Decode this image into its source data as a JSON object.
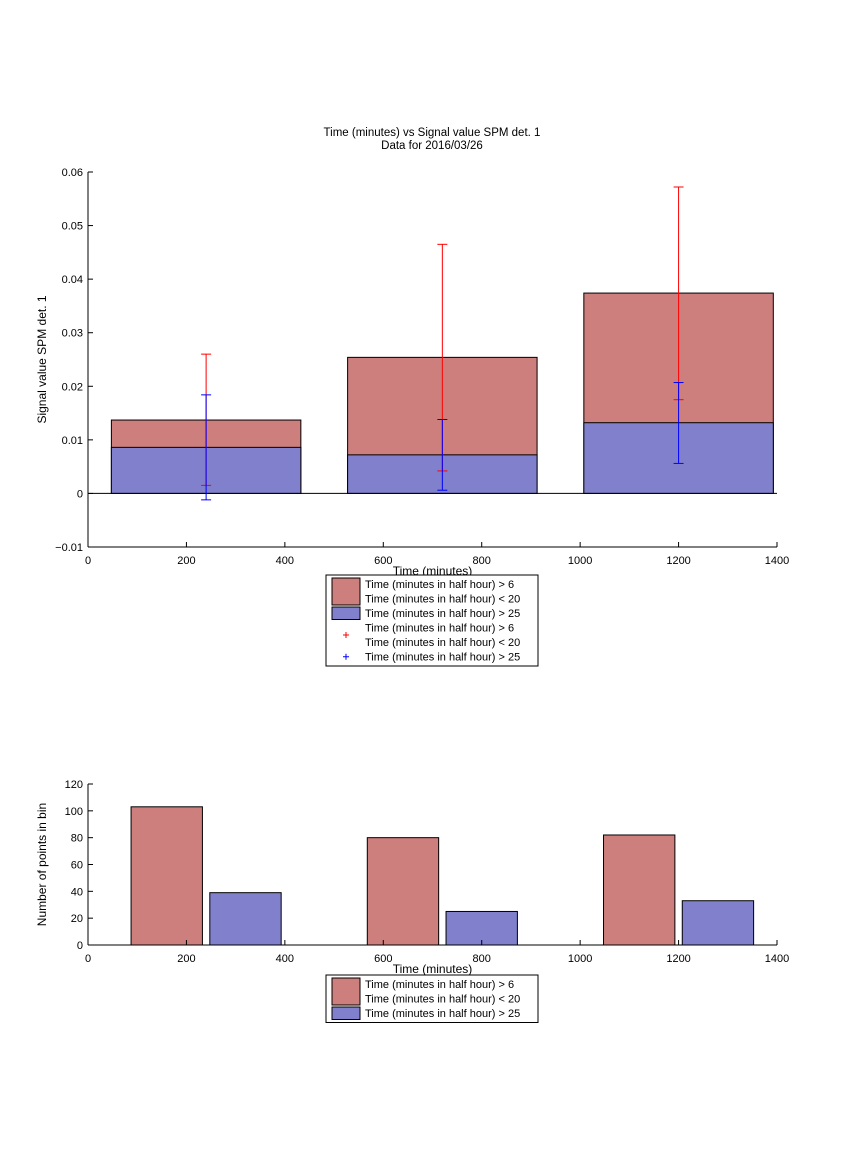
{
  "figure": {
    "title": "Time (minutes) vs Signal value SPM det. 1",
    "subtitle": "Data for 2016/03/26"
  },
  "colors": {
    "bar_red": "#cc7f7d",
    "bar_blue": "#8080cc",
    "err_red": "#ff0000",
    "err_blue": "#0000ff"
  },
  "chart_data": [
    {
      "type": "bar",
      "stacked": "overlay",
      "xlabel": "Time (minutes)",
      "ylabel": "Signal value SPM det. 1",
      "xlim": [
        0,
        1400
      ],
      "ylim": [
        -0.01,
        0.06
      ],
      "xticks": [
        0,
        200,
        400,
        600,
        800,
        1000,
        1200,
        1400
      ],
      "yticks": [
        -0.01,
        0,
        0.01,
        0.02,
        0.03,
        0.04,
        0.05,
        0.06
      ],
      "ytick_labels": [
        "−0.01",
        "0",
        "0.01",
        "0.02",
        "0.03",
        "0.04",
        "0.05",
        "0.06"
      ],
      "grid": false,
      "bar_centers": [
        240,
        720,
        1200
      ],
      "bar_width": 385,
      "series": [
        {
          "name": "Time (minutes in half hour) > 6\nTime (minutes in half hour) < 20",
          "color_key": "bar_red",
          "values": [
            0.0137,
            0.0254,
            0.0374
          ]
        },
        {
          "name": "Time (minutes in half hour) > 25",
          "color_key": "bar_blue",
          "values": [
            0.0086,
            0.0072,
            0.0132
          ]
        }
      ],
      "errorbars": [
        {
          "name": "Time (minutes in half hour) > 6\nTime (minutes in half hour) < 20",
          "color_key": "err_red",
          "x": [
            240,
            720,
            1200
          ],
          "lower": [
            0.0015,
            0.0042,
            0.0175
          ],
          "upper": [
            0.026,
            0.0465,
            0.0572
          ]
        },
        {
          "name": "Time (minutes in half hour) > 25",
          "color_key": "err_blue",
          "x": [
            240,
            720,
            1200
          ],
          "lower": [
            -0.0012,
            0.0006,
            0.0056
          ],
          "upper": [
            0.0184,
            0.0138,
            0.0207
          ]
        }
      ],
      "legend": {
        "placement": "bottom-center",
        "entries": [
          {
            "kind": "bar",
            "color_key": "bar_red",
            "lines": [
              "Time (minutes in half hour) > 6",
              "Time (minutes in half hour) < 20"
            ]
          },
          {
            "kind": "bar",
            "color_key": "bar_blue",
            "lines": [
              "Time (minutes in half hour) > 25"
            ]
          },
          {
            "kind": "marker",
            "color_key": "err_red",
            "lines": [
              "Time (minutes in half hour) > 6",
              "Time (minutes in half hour) < 20"
            ]
          },
          {
            "kind": "marker",
            "color_key": "err_blue",
            "lines": [
              "Time (minutes in half hour) > 25"
            ]
          }
        ]
      }
    },
    {
      "type": "bar",
      "xlabel": "Time (minutes)",
      "ylabel": "Number of points in bin",
      "xlim": [
        0,
        1400
      ],
      "ylim": [
        0,
        120
      ],
      "xticks": [
        0,
        200,
        400,
        600,
        800,
        1000,
        1200,
        1400
      ],
      "yticks": [
        0,
        20,
        40,
        60,
        80,
        100,
        120
      ],
      "ytick_labels": [
        "0",
        "20",
        "40",
        "60",
        "80",
        "100",
        "120"
      ],
      "grid": false,
      "bars": [
        {
          "series": 0,
          "color_key": "bar_red",
          "x": 160,
          "width": 145,
          "value": 103
        },
        {
          "series": 1,
          "color_key": "bar_blue",
          "x": 320,
          "width": 145,
          "value": 39
        },
        {
          "series": 0,
          "color_key": "bar_red",
          "x": 640,
          "width": 145,
          "value": 80
        },
        {
          "series": 1,
          "color_key": "bar_blue",
          "x": 800,
          "width": 145,
          "value": 25
        },
        {
          "series": 0,
          "color_key": "bar_red",
          "x": 1120,
          "width": 145,
          "value": 82
        },
        {
          "series": 1,
          "color_key": "bar_blue",
          "x": 1280,
          "width": 145,
          "value": 33
        }
      ],
      "series": [
        {
          "name": "Time (minutes in half hour) > 6\nTime (minutes in half hour) < 20",
          "color_key": "bar_red",
          "values": [
            103,
            80,
            82
          ]
        },
        {
          "name": "Time (minutes in half hour) > 25",
          "color_key": "bar_blue",
          "values": [
            39,
            25,
            33
          ]
        }
      ],
      "legend": {
        "placement": "bottom-center",
        "entries": [
          {
            "kind": "bar",
            "color_key": "bar_red",
            "lines": [
              "Time (minutes in half hour) > 6",
              "Time (minutes in half hour) < 20"
            ]
          },
          {
            "kind": "bar",
            "color_key": "bar_blue",
            "lines": [
              "Time (minutes in half hour) > 25"
            ]
          }
        ]
      }
    }
  ]
}
